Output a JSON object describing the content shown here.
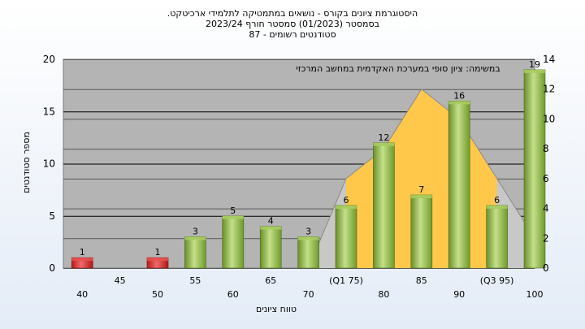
{
  "titles": {
    "line1": "היסטוגרמת ציונים בקורס - נושאים במתמטיקה לתלמידי ארכיטקט.",
    "line2": "בסמסטר  (01/2023)  סמסטר חורף  2023/24",
    "line3": "סטודנטים רשומים - 87"
  },
  "chart_data": {
    "type": "bar",
    "annotation": "במשימה: ציון סופי במערכת האקדמית במחשב המרכזי",
    "xlabel": "טווח ציונים",
    "ylabel": "מספר סטודנטים",
    "ylim": [
      0,
      20
    ],
    "y_ticks": [
      0,
      5,
      10,
      15,
      20
    ],
    "y2lim": [
      0,
      14
    ],
    "y2_ticks": [
      0,
      2,
      4,
      6,
      8,
      10,
      12,
      14
    ],
    "grid": true,
    "categories": [
      "40",
      "45",
      "50",
      "55",
      "60",
      "65",
      "70",
      "(Q1 75)",
      "80",
      "85",
      "90",
      "(Q3 95)",
      "100"
    ],
    "values": [
      1,
      null,
      1,
      3,
      5,
      4,
      3,
      6,
      12,
      7,
      16,
      6,
      19
    ],
    "bar_colors": [
      "#d93030",
      null,
      "#d93030",
      "#8ab640",
      "#8ab640",
      "#8ab640",
      "#8ab640",
      "#8ab640",
      "#8ab640",
      "#8ab640",
      "#8ab640",
      "#8ab640",
      "#8ab640"
    ],
    "distribution_curve": {
      "x": [
        "70",
        "(Q1 75)",
        "80",
        "85",
        "90",
        "(Q3 95)",
        "100"
      ],
      "values": [
        0,
        6,
        8,
        12,
        10,
        6,
        2
      ],
      "fill_range": [
        "(Q1 75)",
        "(Q3 95)"
      ],
      "fill_color": "#ffc84a",
      "outline_color": "#c8c8c8"
    }
  }
}
